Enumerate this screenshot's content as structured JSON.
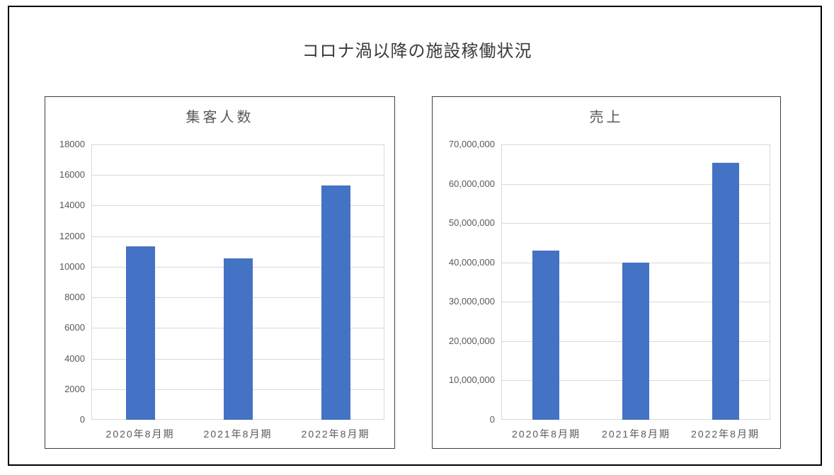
{
  "frame": {
    "title": "コロナ渦以降の施設稼働状況"
  },
  "colors": {
    "bar": "#4472C4",
    "grid": "#D9D9D9",
    "axis_text": "#595959",
    "chart_title_text": "#595959",
    "main_title_text": "#3C3C3C",
    "panel_border": "#3F3F3F",
    "outer_border": "#000000"
  },
  "chart_data": [
    {
      "id": "visitors",
      "type": "bar",
      "title": "集客人数",
      "categories": [
        "2020年8月期",
        "2021年8月期",
        "2022年8月期"
      ],
      "values": [
        11350,
        10550,
        15300
      ],
      "xlabel": "",
      "ylabel": "",
      "ylim": [
        0,
        18000
      ],
      "yticks": [
        0,
        2000,
        4000,
        6000,
        8000,
        10000,
        12000,
        14000,
        16000,
        18000
      ],
      "ytick_labels": [
        "0",
        "2000",
        "4000",
        "6000",
        "8000",
        "10000",
        "12000",
        "14000",
        "16000",
        "18000"
      ],
      "grid": true,
      "legend": "none",
      "bar_color": "#4472C4"
    },
    {
      "id": "sales",
      "type": "bar",
      "title": "売上",
      "categories": [
        "2020年8月期",
        "2021年8月期",
        "2022年8月期"
      ],
      "values": [
        43000000,
        40000000,
        65300000
      ],
      "xlabel": "",
      "ylabel": "",
      "ylim": [
        0,
        70000000
      ],
      "yticks": [
        0,
        10000000,
        20000000,
        30000000,
        40000000,
        50000000,
        60000000,
        70000000
      ],
      "ytick_labels": [
        "0",
        "10,000,000",
        "20,000,000",
        "30,000,000",
        "40,000,000",
        "50,000,000",
        "60,000,000",
        "70,000,000"
      ],
      "grid": true,
      "legend": "none",
      "bar_color": "#4472C4"
    }
  ]
}
